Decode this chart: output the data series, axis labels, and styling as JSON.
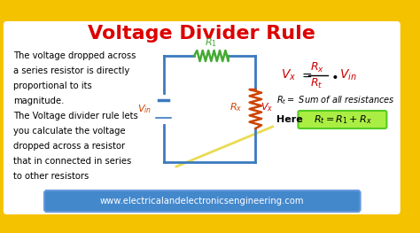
{
  "title": "Voltage Divider Rule",
  "title_color": "#dd0000",
  "bg_outer": "#f5c200",
  "bg_inner": "#ffffff",
  "text_color": "#000000",
  "circuit_color": "#3a7abf",
  "resistor1_color": "#44aa33",
  "resistor2_color": "#cc4400",
  "formula_vx_color": "#cc0000",
  "formula_r_color": "#cc0000",
  "highlight_box_color": "#55cc22",
  "highlight_box_fill": "#aaee44",
  "footer_bg": "#4488cc",
  "footer_text": "www.electricalandelectronicsengineering.com",
  "body_lines": [
    "The voltage dropped across",
    "a series resistor is directly",
    "proportional to its",
    "magnitude.",
    "The Voltage divider rule lets",
    "you calculate the voltage",
    "dropped across a resistor",
    "that in connected in series",
    "to other resistors"
  ]
}
